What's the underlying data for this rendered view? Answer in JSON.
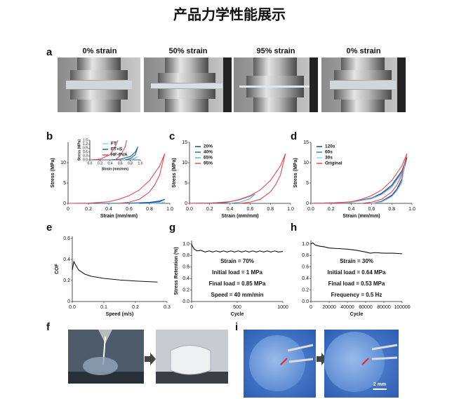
{
  "title": "产品力学性能展示",
  "panel_a": {
    "label": "a",
    "captions": [
      "0% strain",
      "50% strain",
      "95% strain",
      "0% strain"
    ]
  },
  "panel_f": {
    "label": "f"
  },
  "panel_i": {
    "label": "i",
    "scale_bar": "2 mm"
  },
  "chart_data": [
    {
      "type": "line",
      "panel_label": "b",
      "xlabel": "Strain (mm/mm)",
      "ylabel": "Stress (MPa)",
      "xlim": [
        0,
        1
      ],
      "ylim": [
        0,
        15
      ],
      "xticks": [
        0,
        0.2,
        0.4,
        0.6,
        0.8,
        {
          "value": 1,
          "label": "1.0"
        }
      ],
      "yticks": [
        0,
        5,
        10
      ],
      "legend": "upper left",
      "series": [
        {
          "name": "FT",
          "color": "#8fd3e8",
          "x": [
            0,
            0.5,
            0.7,
            0.85,
            0.95,
            0.9,
            0.8
          ],
          "values": [
            0,
            0,
            0.02,
            0.1,
            0.25,
            0.1,
            0
          ]
        },
        {
          "name": "FT+S",
          "color": "#1f5fa0",
          "x": [
            0,
            0.4,
            0.6,
            0.8,
            0.9,
            0.95,
            0.9,
            0.8,
            0.7
          ],
          "values": [
            0,
            0,
            0.05,
            0.25,
            0.6,
            1.0,
            0.4,
            0.1,
            0
          ]
        },
        {
          "name": "HF-PVA",
          "color": "#e8474f",
          "x": [
            0,
            0.2,
            0.4,
            0.5,
            0.6,
            0.7,
            0.8,
            0.9,
            0.95,
            0.9,
            0.85,
            0.8,
            0.7,
            0.6,
            0.5
          ],
          "values": [
            0,
            0.05,
            0.4,
            1,
            1.9,
            3.3,
            5.6,
            9.2,
            12.2,
            7,
            4.5,
            2.8,
            1,
            0.3,
            0
          ]
        }
      ],
      "inset": {
        "xlabel": "Strain (mm/mm)",
        "ylabel": "Stress (MPa)",
        "xlim": [
          0,
          1
        ],
        "ylim": [
          0,
          1.5
        ],
        "xticks": [
          {
            "value": 0,
            "label": "0.0"
          },
          0.2,
          0.4,
          0.6,
          0.8,
          {
            "value": 1,
            "label": "1.0"
          }
        ],
        "yticks": [
          {
            "value": 0,
            "label": "0.0"
          },
          0.3,
          0.6,
          0.9,
          1.2,
          1.5
        ]
      }
    },
    {
      "type": "line",
      "panel_label": "c",
      "xlabel": "Strain (mm/mm)",
      "ylabel": "Stress (MPa)",
      "xlim": [
        0,
        1
      ],
      "ylim": [
        0,
        15
      ],
      "xticks": [
        {
          "value": 0,
          "label": "0.0"
        },
        0.2,
        0.4,
        0.6,
        0.8,
        {
          "value": 1,
          "label": "1.0"
        }
      ],
      "yticks": [
        0,
        5,
        10,
        15
      ],
      "legend": "upper left",
      "series": [
        {
          "name": "20%",
          "color": "#1a4f8a",
          "x": [
            0,
            0.1,
            0.2,
            0.15,
            0.1
          ],
          "values": [
            0,
            0.01,
            0.05,
            0.02,
            0
          ]
        },
        {
          "name": "40%",
          "color": "#2f6fb0",
          "x": [
            0,
            0.2,
            0.3,
            0.4,
            0.35,
            0.3,
            0.2
          ],
          "values": [
            0,
            0.05,
            0.15,
            0.4,
            0.15,
            0.05,
            0
          ]
        },
        {
          "name": "65%",
          "color": "#6fa6d6",
          "x": [
            0,
            0.2,
            0.4,
            0.5,
            0.6,
            0.65,
            0.6,
            0.55,
            0.5,
            0.4
          ],
          "values": [
            0,
            0.05,
            0.4,
            0.9,
            1.7,
            2.3,
            1.2,
            0.7,
            0.3,
            0
          ]
        },
        {
          "name": "95%",
          "color": "#e8474f",
          "x": [
            0,
            0.2,
            0.4,
            0.5,
            0.6,
            0.7,
            0.8,
            0.9,
            0.95,
            0.9,
            0.85,
            0.8,
            0.7,
            0.6,
            0.5
          ],
          "values": [
            0,
            0.05,
            0.4,
            1,
            1.9,
            3.3,
            5.6,
            9.2,
            12.2,
            7,
            4.5,
            2.8,
            1,
            0.3,
            0
          ]
        }
      ]
    },
    {
      "type": "line",
      "panel_label": "d",
      "xlabel": "Strain (mm/mm)",
      "ylabel": "Stress (MPa)",
      "xlim": [
        0,
        1
      ],
      "ylim": [
        0,
        15
      ],
      "xticks": [
        {
          "value": 0,
          "label": "0.0"
        },
        0.2,
        0.4,
        0.6,
        0.8,
        {
          "value": 1,
          "label": "1.0"
        }
      ],
      "yticks": [
        0,
        5,
        10,
        15
      ],
      "legend": "upper left",
      "series": [
        {
          "name": "120s",
          "color": "#1a4f8a",
          "x": [
            0,
            0.4,
            0.6,
            0.7,
            0.8,
            0.9,
            0.95,
            0.9,
            0.85,
            0.8,
            0.7,
            0.6
          ],
          "values": [
            0,
            0.3,
            1.3,
            2.5,
            4.5,
            8,
            11.3,
            6,
            3.5,
            2,
            0.5,
            0
          ]
        },
        {
          "name": "60s",
          "color": "#3f80c0",
          "x": [
            0,
            0.4,
            0.6,
            0.7,
            0.8,
            0.9,
            0.94,
            0.9,
            0.85,
            0.8,
            0.7,
            0.6
          ],
          "values": [
            0,
            0.3,
            1.2,
            2.3,
            4.2,
            7.6,
            10.5,
            5.5,
            3.2,
            1.8,
            0.4,
            0
          ]
        },
        {
          "name": "30s",
          "color": "#a8d0ea",
          "x": [
            0,
            0.4,
            0.6,
            0.7,
            0.8,
            0.9,
            0.93,
            0.9,
            0.85,
            0.8,
            0.7,
            0.6
          ],
          "values": [
            0,
            0.2,
            1.1,
            2.1,
            3.9,
            7.2,
            9.5,
            5,
            3,
            1.6,
            0.3,
            0
          ]
        },
        {
          "name": "Original",
          "color": "#e8474f",
          "x": [
            0,
            0.2,
            0.4,
            0.5,
            0.6,
            0.7,
            0.8,
            0.9,
            0.95,
            0.9,
            0.85,
            0.8,
            0.7,
            0.6,
            0.5
          ],
          "values": [
            0,
            0.05,
            0.4,
            1,
            1.9,
            3.3,
            5.6,
            9.2,
            12.2,
            7,
            4.5,
            2.8,
            1,
            0.3,
            0
          ]
        }
      ]
    },
    {
      "type": "line",
      "panel_label": "e",
      "xlabel": "Speed (m/s)",
      "ylabel": "COF",
      "xlim": [
        0,
        0.3
      ],
      "ylim": [
        0,
        0.62
      ],
      "xticks": [
        {
          "value": 0,
          "label": "0.0"
        },
        0.1,
        0.2,
        0.3
      ],
      "yticks": [
        0,
        0.2,
        0.4,
        0.6
      ],
      "series": [
        {
          "color": "#111111",
          "x": [
            0,
            0.005,
            0.01,
            0.02,
            0.04,
            0.06,
            0.1,
            0.15,
            0.2,
            0.27
          ],
          "values": [
            0.3,
            0.38,
            0.35,
            0.3,
            0.26,
            0.24,
            0.22,
            0.205,
            0.195,
            0.185
          ]
        }
      ]
    },
    {
      "type": "line",
      "panel_label": "g",
      "xlabel": "Cycle",
      "ylabel": "Stress Retention (%)",
      "xlim": [
        0,
        1000
      ],
      "ylim": [
        0,
        1.06
      ],
      "xticks": [
        0,
        500,
        1000
      ],
      "yticks": [
        {
          "value": 0,
          "label": "0.0"
        },
        0.2,
        0.4,
        0.6,
        0.8,
        {
          "value": 1,
          "label": "1.0"
        }
      ],
      "annotations": [
        "Strain = 70%",
        "Initial load = 1 MPa",
        "Final load = 0.85 MPa",
        "Speed = 40 mm/min"
      ],
      "series": [
        {
          "color": "#111111",
          "x": [
            0,
            10,
            30,
            60,
            100,
            150,
            190,
            230,
            270,
            310,
            350,
            390,
            430,
            470,
            510,
            550,
            590,
            630,
            670,
            710,
            750,
            790,
            830,
            870,
            910,
            950,
            1000
          ],
          "values": [
            1.0,
            0.96,
            0.91,
            0.88,
            0.89,
            0.86,
            0.88,
            0.86,
            0.88,
            0.86,
            0.88,
            0.86,
            0.88,
            0.86,
            0.88,
            0.86,
            0.88,
            0.86,
            0.88,
            0.86,
            0.88,
            0.86,
            0.88,
            0.86,
            0.88,
            0.86,
            0.87
          ]
        }
      ]
    },
    {
      "type": "line",
      "panel_label": "h",
      "xlabel": "Cycle",
      "xlim": [
        0,
        100000
      ],
      "ylim": [
        0,
        1.06
      ],
      "xticks": [
        0,
        20000,
        40000,
        60000,
        80000,
        100000
      ],
      "yticks": [
        {
          "value": 0,
          "label": "0.0"
        },
        0.2,
        0.4,
        0.6,
        0.8,
        {
          "value": 1,
          "label": "1.0"
        }
      ],
      "annotations": [
        "Strain = 30%",
        "Initial load = 0.64 MPa",
        "Final load = 0.53 MPa",
        "Frequency = 0.5 Hz"
      ],
      "series": [
        {
          "color": "#111111",
          "x": [
            0,
            2000,
            5000,
            10000,
            15000,
            20000,
            30000,
            40000,
            50000,
            60000,
            65000,
            70000,
            80000,
            90000,
            100000
          ],
          "values": [
            1.0,
            1.02,
            0.98,
            0.96,
            0.95,
            0.93,
            0.92,
            0.91,
            0.89,
            0.86,
            0.84,
            0.85,
            0.84,
            0.84,
            0.83
          ]
        }
      ]
    }
  ]
}
